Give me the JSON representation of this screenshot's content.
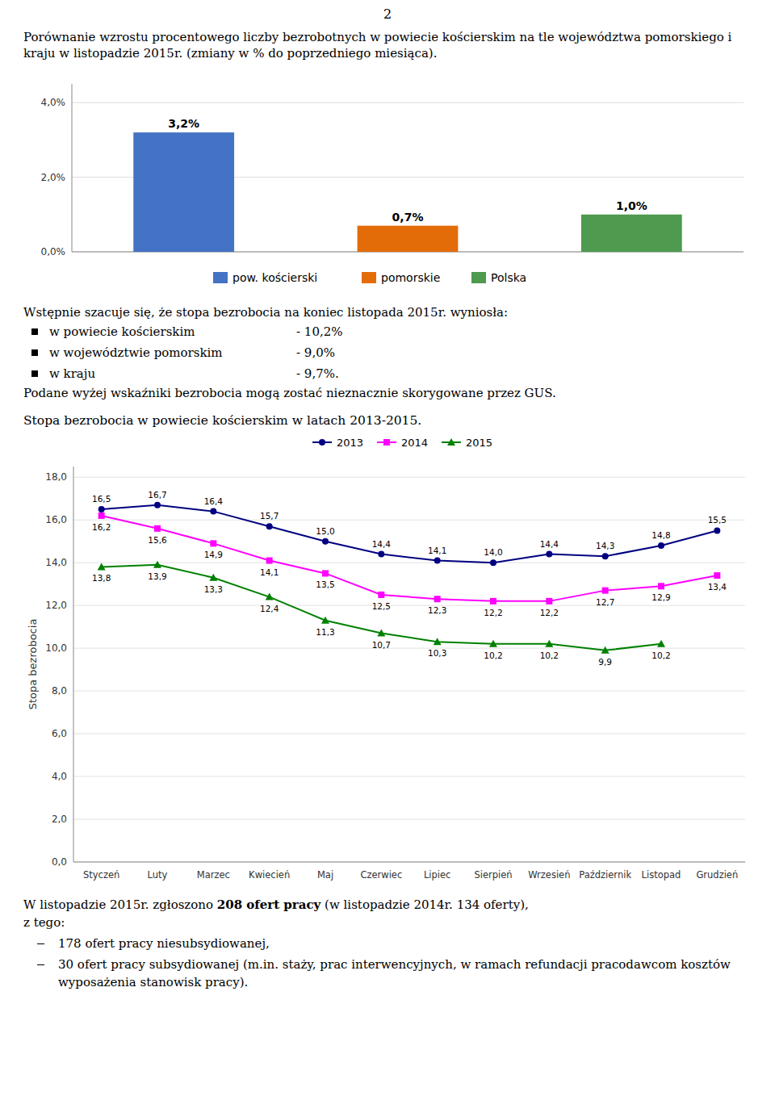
{
  "page_number": "2",
  "chart_data": [
    {
      "type": "bar",
      "title": "Porównanie wzrostu procentowego liczby bezrobotnych w powiecie kościerskim na tle województwa pomorskiego i kraju w listopadzie 2015r. (zmiany w % do poprzedniego miesiąca).",
      "categories": [
        "pow. kościerski",
        "pomorskie",
        "Polska"
      ],
      "values": [
        3.2,
        0.7,
        1.0
      ],
      "value_labels": [
        "3,2%",
        "0,7%",
        "1,0%"
      ],
      "colors": [
        "#4472C4",
        "#E36C09",
        "#4E9A4E"
      ],
      "ylim": [
        0,
        4.5
      ],
      "yticks": [
        {
          "value": 0.0,
          "label": "0,0%"
        },
        {
          "value": 2.0,
          "label": "2,0%"
        },
        {
          "value": 4.0,
          "label": "4,0%"
        }
      ],
      "grid": true,
      "legend": "bottom",
      "data_labels": true,
      "tick_labels": "y"
    },
    {
      "type": "line",
      "title": "Stopa bezrobocia w powiecie kościerskim w latach 2013-2015.",
      "categories": [
        "Styczeń",
        "Luty",
        "Marzec",
        "Kwiecień",
        "Maj",
        "Czerwiec",
        "Lipiec",
        "Sierpień",
        "Wrzesień",
        "Październik",
        "Listopad",
        "Grudzień"
      ],
      "series": [
        {
          "name": "2013",
          "color": "#000080",
          "marker": "circle",
          "values": [
            16.5,
            16.7,
            16.4,
            15.7,
            15.0,
            14.4,
            14.1,
            14.0,
            14.4,
            14.3,
            14.8,
            15.5
          ],
          "value_labels": [
            "16,5",
            "16,7",
            "16,4",
            "15,7",
            "15,0",
            "14,4",
            "14,1",
            "14,0",
            "14,4",
            "14,3",
            "14,8",
            "15,5"
          ]
        },
        {
          "name": "2014",
          "color": "#FF00FF",
          "marker": "square",
          "values": [
            16.2,
            15.6,
            14.9,
            14.1,
            13.5,
            12.5,
            12.3,
            12.2,
            12.2,
            12.7,
            12.9,
            13.4
          ],
          "value_labels": [
            "16,2",
            "15,6",
            "14,9",
            "14,1",
            "13,5",
            "12,5",
            "12,3",
            "12,2",
            "12,2",
            "12,7",
            "12,9",
            "13,4"
          ]
        },
        {
          "name": "2015",
          "color": "#008000",
          "marker": "triangle",
          "values": [
            13.8,
            13.9,
            13.3,
            12.4,
            11.3,
            10.7,
            10.3,
            10.2,
            10.2,
            9.9,
            10.2,
            null
          ],
          "value_labels": [
            "13,8",
            "13,9",
            "13,3",
            "12,4",
            "11,3",
            "10,7",
            "10,3",
            "10,2",
            "10,2",
            "9,9",
            "10,2",
            null
          ]
        }
      ],
      "y_label": "Stopa bezrobocia",
      "ylim": [
        0,
        18.5
      ],
      "yticks": [
        {
          "value": 0.0,
          "label": "0,0"
        },
        {
          "value": 2.0,
          "label": "2,0"
        },
        {
          "value": 4.0,
          "label": "4,0"
        },
        {
          "value": 6.0,
          "label": "6,0"
        },
        {
          "value": 8.0,
          "label": "8,0"
        },
        {
          "value": 10.0,
          "label": "10,0"
        },
        {
          "value": 12.0,
          "label": "12,0"
        },
        {
          "value": 14.0,
          "label": "14,0"
        },
        {
          "value": 16.0,
          "label": "16,0"
        },
        {
          "value": 18.0,
          "label": "18,0"
        }
      ],
      "grid": true,
      "legend": "top",
      "data_labels": true
    }
  ],
  "text_after_bar": {
    "intro": "Wstępnie szacuje się, że stopa bezrobocia na koniec listopada 2015r. wyniosła:",
    "bullets": [
      [
        "w powiecie kościerskim",
        "- 10,2%"
      ],
      [
        "w województwie pomorskim",
        "- 9,0%"
      ],
      [
        "w kraju",
        "- 9,7%."
      ]
    ],
    "note": "Podane wyżej wskaźniki bezrobocia mogą zostać nieznacznie skorygowane przez GUS."
  },
  "text_after_line": {
    "line1": [
      "W listopadzie 2015r. zgłoszono ",
      "208 ofert pracy",
      " (w listopadzie 2014r. 134 oferty),"
    ],
    "line2": "z tego:",
    "bullets": [
      "178 ofert pracy niesubsydiowanej,",
      "30 ofert pracy subsydiowanej (m.in. staży, prac interwencyjnych, w ramach refundacji pracodawcom kosztów wyposażenia stanowisk pracy)."
    ]
  }
}
